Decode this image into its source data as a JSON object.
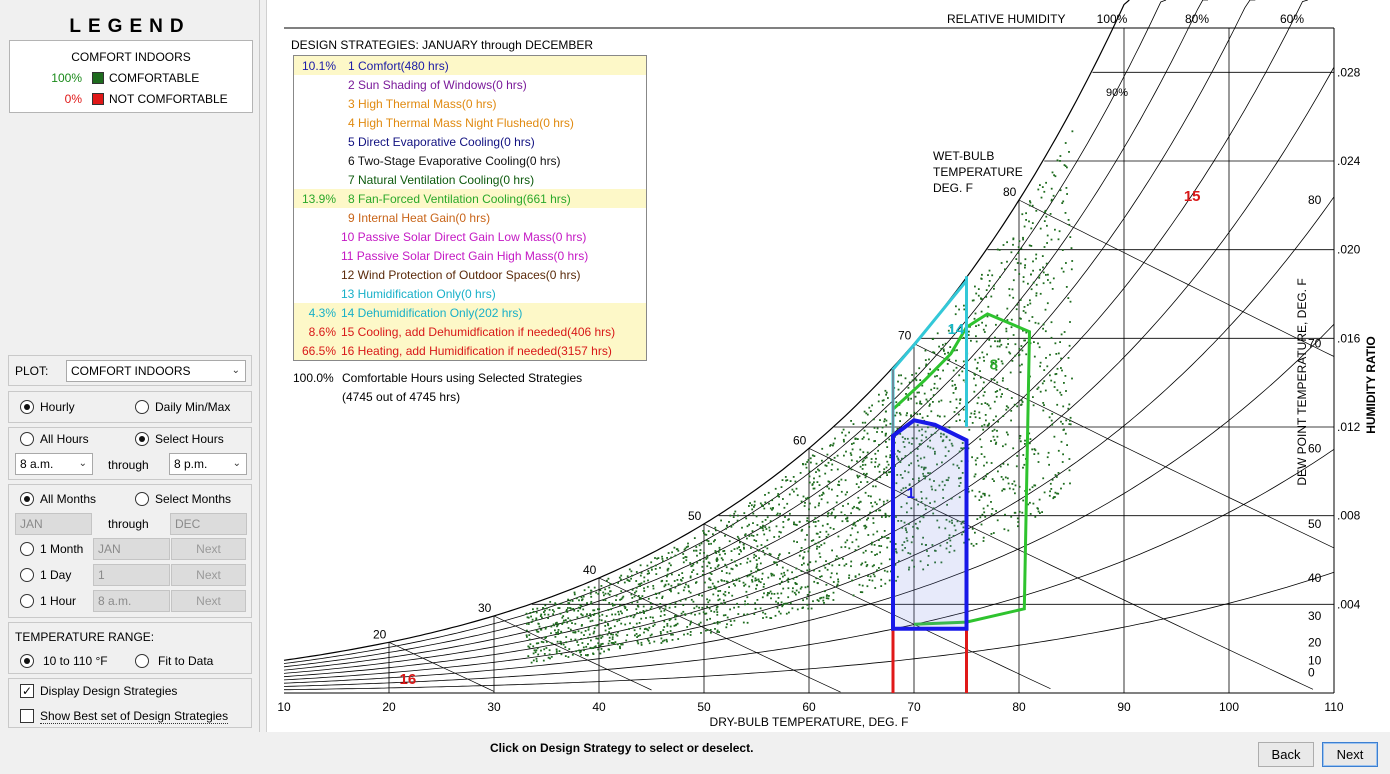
{
  "legend": {
    "title": "LEGEND",
    "subtitle": "COMFORT INDOORS",
    "items": [
      {
        "pct": "100%",
        "label": "COMFORTABLE",
        "color": "#1e6b1e",
        "pct_color": "#1a8a1a"
      },
      {
        "pct": "0%",
        "label": "NOT COMFORTABLE",
        "color": "#e01818",
        "pct_color": "#e01818"
      }
    ]
  },
  "plot": {
    "label": "PLOT:",
    "value": "COMFORT INDOORS"
  },
  "mode": {
    "hourly": "Hourly",
    "daily": "Daily Min/Max",
    "selected": "hourly"
  },
  "hours": {
    "all_label": "All Hours",
    "select_label": "Select Hours",
    "selected": "select",
    "from": "8 a.m.",
    "through_label": "through",
    "to": "8 p.m."
  },
  "months": {
    "all_label": "All Months",
    "select_label": "Select Months",
    "selected": "all",
    "from": "JAN",
    "through_label": "through",
    "to": "DEC",
    "one_month": {
      "label": "1 Month",
      "value": "JAN",
      "next": "Next"
    },
    "one_day": {
      "label": "1 Day",
      "value": "1",
      "next": "Next"
    },
    "one_hour": {
      "label": "1 Hour",
      "value": "8 a.m.",
      "next": "Next"
    }
  },
  "temperature_range": {
    "label": "TEMPERATURE RANGE:",
    "option1": "10 to 110 °F",
    "option2": "Fit to Data",
    "selected": "option1"
  },
  "checkboxes": {
    "display_strategies": {
      "label": "Display Design Strategies",
      "checked": true
    },
    "best_set": {
      "label": "Show Best set of Design Strategies",
      "checked": false
    }
  },
  "strategies": {
    "header": "DESIGN STRATEGIES:  JANUARY through DECEMBER",
    "items": [
      {
        "pct": "10.1%",
        "text": "1  Comfort(480 hrs)",
        "color": "#1a1aa8",
        "highlight": true
      },
      {
        "pct": "",
        "text": "2  Sun Shading of Windows(0 hrs)",
        "color": "#7a1a9a",
        "highlight": false
      },
      {
        "pct": "",
        "text": "3  High Thermal Mass(0 hrs)",
        "color": "#e08a10",
        "highlight": false
      },
      {
        "pct": "",
        "text": "4  High Thermal Mass Night Flushed(0 hrs)",
        "color": "#e08a10",
        "highlight": false
      },
      {
        "pct": "",
        "text": "5  Direct Evaporative Cooling(0 hrs)",
        "color": "#101080",
        "highlight": false
      },
      {
        "pct": "",
        "text": "6  Two-Stage Evaporative Cooling(0 hrs)",
        "color": "#111111",
        "highlight": false
      },
      {
        "pct": "",
        "text": "7  Natural Ventilation Cooling(0 hrs)",
        "color": "#0d5a0d",
        "highlight": false
      },
      {
        "pct": "13.9%",
        "text": "8  Fan-Forced Ventilation Cooling(661 hrs)",
        "color": "#2aa82a",
        "highlight": true
      },
      {
        "pct": "",
        "text": "9  Internal Heat Gain(0 hrs)",
        "color": "#c86418",
        "highlight": false
      },
      {
        "pct": "",
        "text": "10  Passive Solar Direct Gain Low Mass(0 hrs)",
        "color": "#c418c4",
        "highlight": false
      },
      {
        "pct": "",
        "text": "11  Passive Solar Direct Gain High Mass(0 hrs)",
        "color": "#c418c4",
        "highlight": false
      },
      {
        "pct": "",
        "text": "12  Wind Protection of Outdoor Spaces(0 hrs)",
        "color": "#5a2a0a",
        "highlight": false
      },
      {
        "pct": "",
        "text": "13  Humidification Only(0 hrs)",
        "color": "#18b0c8",
        "highlight": false
      },
      {
        "pct": "4.3%",
        "text": "14  Dehumidification Only(202 hrs)",
        "color": "#18b0c8",
        "highlight": true
      },
      {
        "pct": "8.6%",
        "text": "15  Cooling, add Dehumidfication if needed(406 hrs)",
        "color": "#d81818",
        "highlight": true
      },
      {
        "pct": "66.5%",
        "text": "16  Heating, add Humidification if needed(3157 hrs)",
        "color": "#d81818",
        "highlight": true
      }
    ],
    "summary_pct": "100.0%",
    "summary_text": "Comfortable Hours using Selected Strategies",
    "summary_detail": "(4745 out of 4745 hrs)"
  },
  "chart_data": {
    "type": "scatter",
    "xlabel": "DRY-BULB TEMPERATURE, DEG. F",
    "ylabel_right": "HUMIDITY RATIO",
    "ylabel_dewpoint": "DEW POINT TEMPERATURE, DEG. F",
    "rh_title": "RELATIVE HUMIDITY",
    "rh_labels": [
      "100%",
      "80%",
      "60%"
    ],
    "rh_90_label": "90%",
    "wetbulb_title": [
      "WET-BULB",
      "TEMPERATURE",
      "DEG. F"
    ],
    "x_ticks": [
      10,
      20,
      30,
      40,
      50,
      60,
      70,
      80,
      90,
      100,
      110
    ],
    "xlim": [
      10,
      110
    ],
    "ylim": [
      0,
      0.03
    ],
    "w_ticks": [
      ".004",
      ".008",
      ".012",
      ".016",
      ".020",
      ".024",
      ".028"
    ],
    "w_values": [
      0.004,
      0.008,
      0.012,
      0.016,
      0.02,
      0.024,
      0.028
    ],
    "dewpoint_ticks": [
      0,
      10,
      20,
      30,
      40,
      50,
      60,
      70,
      80
    ],
    "wetbulb_ticks": [
      20,
      30,
      40,
      50,
      60,
      70,
      80
    ],
    "zone_labels": [
      {
        "text": "1",
        "x": 69.3,
        "w": 0.0088,
        "color": "#1a1ae8"
      },
      {
        "text": "8",
        "x": 77.2,
        "w": 0.0146,
        "color": "#2aa82a"
      },
      {
        "text": "14",
        "x": 73.2,
        "w": 0.0162,
        "color": "#18b8c8"
      },
      {
        "text": "15",
        "x": 95.7,
        "w": 0.0222,
        "color": "#d81818"
      },
      {
        "text": "16",
        "x": 21,
        "w": 0.0004,
        "color": "#d81818"
      }
    ],
    "dots_note": "hourly points spread along saturation curve 35–85 °F",
    "dots_color": "#1e6b1e"
  },
  "footer": {
    "instruction": "Click on Design Strategy to select or deselect.",
    "back": "Back",
    "next": "Next"
  }
}
